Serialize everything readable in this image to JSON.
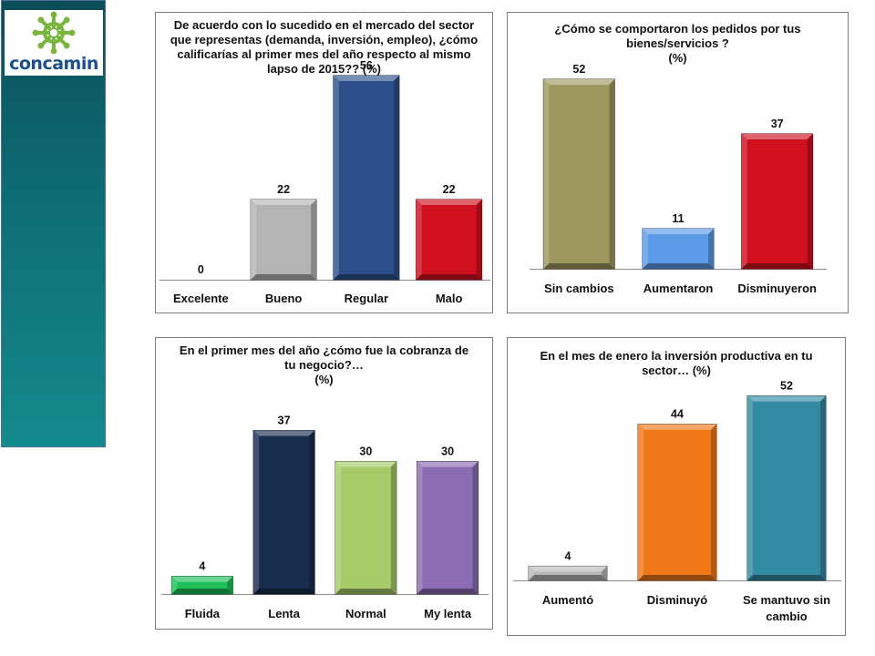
{
  "logo": {
    "text": "concamin",
    "icon": "concamin-star-icon",
    "icon_color": "#7ab540",
    "text_color": "#1d4f8c"
  },
  "sidebar": {
    "color_top": "#0b4d58",
    "color_bottom": "#148a8c"
  },
  "chart_data": [
    {
      "type": "bar",
      "title_lines": [
        "De acuerdo con lo sucedido en el mercado del sector",
        "que representas (demanda, inversión, empleo), ¿cómo",
        "calificarías al primer mes del año respecto al mismo",
        "lapso de 2015??       (%)"
      ],
      "categories": [
        [
          "Excelente"
        ],
        [
          "Bueno"
        ],
        [
          "Regular"
        ],
        [
          "Malo"
        ]
      ],
      "values": [
        0,
        22,
        56,
        22
      ],
      "colors": [
        "#c0c0c0",
        "#b4b4b4",
        "#2c4f8c",
        "#d0101e"
      ],
      "ylim": [
        0,
        60
      ],
      "grid": false,
      "legend": "none"
    },
    {
      "type": "bar",
      "title_lines": [
        "¿Cómo se comportaron los pedidos por tus",
        "bienes/servicios ?",
        "(%)"
      ],
      "categories": [
        [
          "Sin cambios"
        ],
        [
          "Aumentaron"
        ],
        [
          "Disminuyeron"
        ]
      ],
      "values": [
        52,
        11,
        37
      ],
      "colors": [
        "#9e9860",
        "#5b9ae6",
        "#d0101e"
      ],
      "ylim": [
        0,
        57
      ],
      "grid": false,
      "legend": "none"
    },
    {
      "type": "bar",
      "title_lines": [
        "En el primer mes del año ¿cómo fue la cobranza de",
        "tu negocio?…",
        "(%)"
      ],
      "categories": [
        [
          "Fluida"
        ],
        [
          "Lenta"
        ],
        [
          "Normal"
        ],
        [
          "My lenta"
        ]
      ],
      "values": [
        4,
        37,
        30,
        30
      ],
      "colors": [
        "#1fbf5a",
        "#182c4c",
        "#a6cb68",
        "#8c6db3"
      ],
      "ylim": [
        0,
        40
      ],
      "grid": false,
      "legend": "none"
    },
    {
      "type": "bar",
      "title_lines": [
        "En el mes de enero la inversión productiva en tu",
        "sector… (%)"
      ],
      "categories": [
        [
          "Aumentó"
        ],
        [
          "Disminuyó"
        ],
        [
          "Se mantuvo sin",
          "cambio"
        ]
      ],
      "values": [
        4,
        44,
        52
      ],
      "colors": [
        "#b8b8b8",
        "#f07818",
        "#338aa3"
      ],
      "ylim": [
        0,
        56
      ],
      "grid": false,
      "legend": "none"
    }
  ]
}
